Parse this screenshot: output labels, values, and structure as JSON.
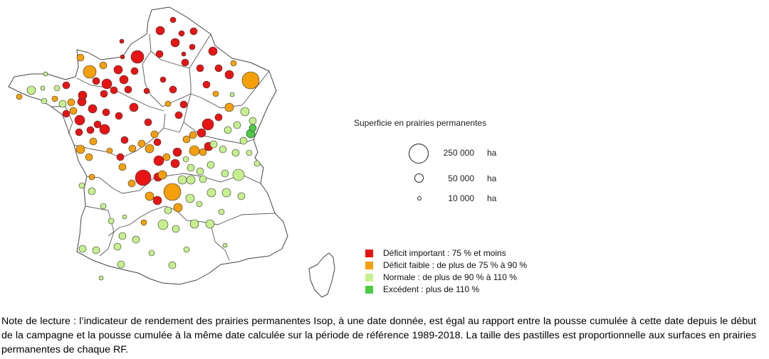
{
  "colors": {
    "deficit_important": "#e81414",
    "deficit_faible": "#f5a00a",
    "normale": "#c6f08e",
    "excedent": "#4ccb44",
    "map_stroke": "#444444"
  },
  "size_legend": {
    "title": "Superficie en prairies permanentes",
    "entries": [
      {
        "value": "250 000",
        "unit": "ha"
      },
      {
        "value": "50 000",
        "unit": "ha"
      },
      {
        "value": "10 000",
        "unit": "ha"
      }
    ]
  },
  "category_legend": [
    {
      "label": "Déficit important : 75 % et moins",
      "color": "#e81414"
    },
    {
      "label": "Déficit faible :  de plus de 75 % à 90 %",
      "color": "#f5a00a"
    },
    {
      "label": "Normale : de plus de 90 % à 110 %",
      "color": "#c6f08e"
    },
    {
      "label": "Excédent : plus de 110 %",
      "color": "#4ccb44"
    }
  ],
  "note": "Note de lecture : l’indicateur de rendement des prairies permanentes Isop, à une date donnée, est égal au rapport entre la pousse cumulée à cette date depuis le début de la campagne et la pousse cumulée à la même date calculée sur la période de référence 1989-2018. La taille des pastilles est proportionnelle aux surfaces en prairies permanentes de chaque RF."
}
